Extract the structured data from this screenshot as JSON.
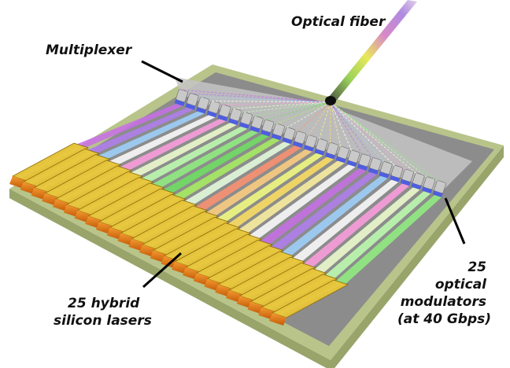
{
  "labels": {
    "optical_fiber": "Optical fiber",
    "multiplexer": "Multiplexer",
    "lasers_line1": "25 hybrid",
    "lasers_line2": "silicon lasers",
    "modulators_line1": "25",
    "modulators_line2": "optical",
    "modulators_line3": "modulators",
    "modulators_line4": "(at 40 Gbps)"
  },
  "counts": {
    "lasers": 25,
    "modulators": 25
  },
  "colors": {
    "chip_top": "#8a8a8a",
    "chip_base": "#b5c27a",
    "laser_gold": "#d6b020",
    "laser_orange": "#e27a12",
    "modulator_blue": "#4e5ee0",
    "modulator_gray": "#c9c9c9",
    "fiber_tip": "#101010"
  },
  "waveguide_colors": [
    "#c86ee8",
    "#b07ef0",
    "#9fd2ff",
    "#ffffff",
    "#ff9ee0",
    "#f0ffd0",
    "#c0ffb0",
    "#90f080",
    "#6ee060",
    "#a8f060",
    "#e8ffe0",
    "#ff9070",
    "#ffd080",
    "#f6ff80",
    "#ffe060",
    "#fff2a0",
    "#ffffff"
  ]
}
